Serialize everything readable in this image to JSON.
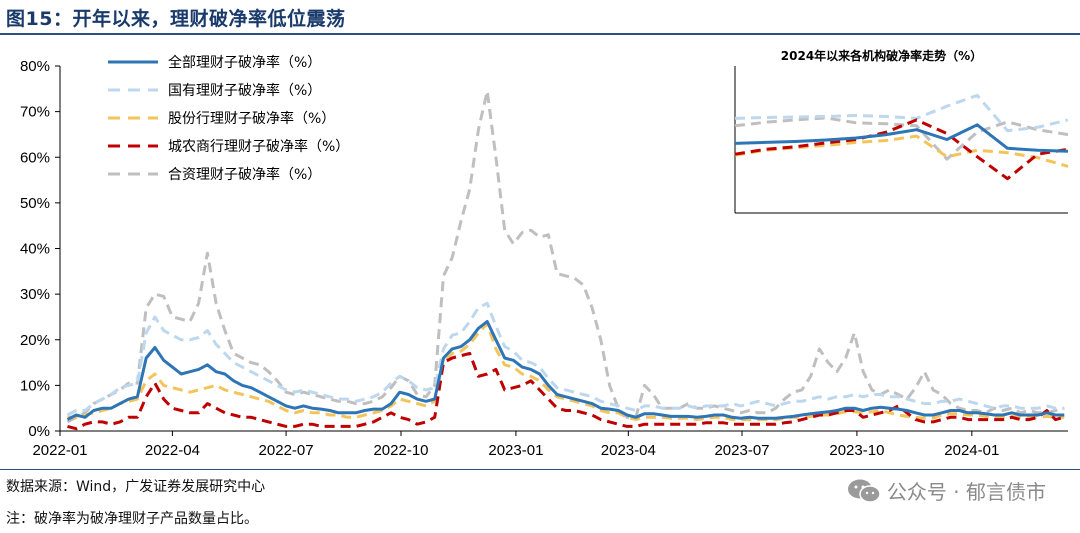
{
  "title": "图15：开年以来，理财破净率低位震荡",
  "source": "数据来源：Wind，广发证券发展研究中心",
  "footnote": "注：破净率为破净理财子产品数量占比。",
  "watermark": "公众号 · 郁言债市",
  "chart_data": [
    {
      "type": "line",
      "x_ticks": [
        "2022-01",
        "2022-04",
        "2022-07",
        "2022-10",
        "2023-01",
        "2023-04",
        "2023-07",
        "2023-10",
        "2024-01"
      ],
      "y_ticks": [
        "0%",
        "10%",
        "20%",
        "30%",
        "40%",
        "50%",
        "60%",
        "70%",
        "80%"
      ],
      "ylim": [
        0,
        80
      ],
      "y_unit": "%",
      "legend_position": "top-left",
      "grid": false,
      "x": [
        "2022-01-07",
        "2022-01-14",
        "2022-01-21",
        "2022-01-28",
        "2022-02-04",
        "2022-02-11",
        "2022-02-18",
        "2022-02-25",
        "2022-03-04",
        "2022-03-11",
        "2022-03-18",
        "2022-03-25",
        "2022-04-01",
        "2022-04-08",
        "2022-04-15",
        "2022-04-22",
        "2022-04-29",
        "2022-05-06",
        "2022-05-13",
        "2022-05-20",
        "2022-05-27",
        "2022-06-03",
        "2022-06-10",
        "2022-06-17",
        "2022-06-24",
        "2022-07-01",
        "2022-07-08",
        "2022-07-15",
        "2022-07-22",
        "2022-07-29",
        "2022-08-05",
        "2022-08-12",
        "2022-08-19",
        "2022-08-26",
        "2022-09-02",
        "2022-09-09",
        "2022-09-16",
        "2022-09-23",
        "2022-09-30",
        "2022-10-07",
        "2022-10-14",
        "2022-10-21",
        "2022-10-28",
        "2022-11-04",
        "2022-11-11",
        "2022-11-18",
        "2022-11-25",
        "2022-12-02",
        "2022-12-09",
        "2022-12-16",
        "2022-12-23",
        "2022-12-30",
        "2023-01-06",
        "2023-01-13",
        "2023-01-20",
        "2023-01-27",
        "2023-02-03",
        "2023-02-10",
        "2023-02-17",
        "2023-02-24",
        "2023-03-03",
        "2023-03-10",
        "2023-03-17",
        "2023-03-24",
        "2023-03-31",
        "2023-04-07",
        "2023-04-14",
        "2023-04-21",
        "2023-04-28",
        "2023-05-05",
        "2023-05-12",
        "2023-05-19",
        "2023-05-26",
        "2023-06-02",
        "2023-06-09",
        "2023-06-16",
        "2023-06-23",
        "2023-06-30",
        "2023-07-07",
        "2023-07-14",
        "2023-07-21",
        "2023-07-28",
        "2023-08-04",
        "2023-08-11",
        "2023-08-18",
        "2023-08-25",
        "2023-09-01",
        "2023-09-08",
        "2023-09-15",
        "2023-09-22",
        "2023-09-29",
        "2023-10-06",
        "2023-10-13",
        "2023-10-20",
        "2023-10-27",
        "2023-11-03",
        "2023-11-10",
        "2023-11-17",
        "2023-11-24",
        "2023-12-01",
        "2023-12-08",
        "2023-12-15",
        "2023-12-22",
        "2023-12-29",
        "2024-01-05",
        "2024-01-12",
        "2024-01-19",
        "2024-01-26",
        "2024-02-02",
        "2024-02-09",
        "2024-02-16",
        "2024-02-23",
        "2024-03-01",
        "2024-03-08",
        "2024-03-15"
      ],
      "series": [
        {
          "name": "全部理财子破净率（%）",
          "color": "#2e75b6",
          "style": "solid",
          "values": [
            2.5,
            3.5,
            3.0,
            4.5,
            5.0,
            5.0,
            6.0,
            7.0,
            7.5,
            16.0,
            18.3,
            15.5,
            14.0,
            12.5,
            13.0,
            13.5,
            14.5,
            13.0,
            12.5,
            11.0,
            10.0,
            9.5,
            8.5,
            7.5,
            6.5,
            5.5,
            5.0,
            5.5,
            5.0,
            4.8,
            4.5,
            4.0,
            4.0,
            4.0,
            4.5,
            4.8,
            4.8,
            6.0,
            8.5,
            8.0,
            7.0,
            6.5,
            7.0,
            16.0,
            18.0,
            18.5,
            20.0,
            22.5,
            24.0,
            20.0,
            16.0,
            15.5,
            14.0,
            13.5,
            12.5,
            10.0,
            8.0,
            7.5,
            7.0,
            6.5,
            6.0,
            5.0,
            4.8,
            4.5,
            3.5,
            3.0,
            3.8,
            3.8,
            3.5,
            3.2,
            3.2,
            3.2,
            3.0,
            3.2,
            3.5,
            3.5,
            3.0,
            2.8,
            3.0,
            2.8,
            2.8,
            2.8,
            3.0,
            3.2,
            3.5,
            3.8,
            4.0,
            4.2,
            4.5,
            5.0,
            5.0,
            4.5,
            5.0,
            5.2,
            5.0,
            4.8,
            4.5,
            4.0,
            3.5,
            3.5,
            4.0,
            4.5,
            4.5,
            4.0,
            4.0,
            3.8,
            3.5,
            3.5,
            4.0,
            3.5,
            3.5,
            3.5,
            4.0,
            3.5,
            3.5
          ]
        },
        {
          "name": "国有理财子破净率（%）",
          "color": "#bdd7ee",
          "style": "dashed",
          "values": [
            3.5,
            4.5,
            4.5,
            6.0,
            7.0,
            8.0,
            9.5,
            10.0,
            10.5,
            21.5,
            25.0,
            22.0,
            21.0,
            20.0,
            20.0,
            20.5,
            22.0,
            19.0,
            17.0,
            15.0,
            14.0,
            13.0,
            12.0,
            11.0,
            10.0,
            9.0,
            8.5,
            9.0,
            8.5,
            8.0,
            7.5,
            7.0,
            7.0,
            6.5,
            7.0,
            7.5,
            8.5,
            10.5,
            12.0,
            11.0,
            9.5,
            9.0,
            9.5,
            18.0,
            21.0,
            21.5,
            24.0,
            27.0,
            28.0,
            23.0,
            18.5,
            17.5,
            15.5,
            15.0,
            14.0,
            11.5,
            9.5,
            9.0,
            8.5,
            8.0,
            7.5,
            6.5,
            6.0,
            5.5,
            5.0,
            4.5,
            5.5,
            5.5,
            5.0,
            5.0,
            5.0,
            5.5,
            5.0,
            5.5,
            5.5,
            5.5,
            6.0,
            5.5,
            6.0,
            6.5,
            6.0,
            5.5,
            6.0,
            6.5,
            6.5,
            7.0,
            7.5,
            7.0,
            7.5,
            7.5,
            8.0,
            7.5,
            8.0,
            8.0,
            7.5,
            7.5,
            7.0,
            6.5,
            6.0,
            6.0,
            6.5,
            6.5,
            7.0,
            6.5,
            6.0,
            5.5,
            5.0,
            5.5,
            5.5,
            5.0,
            5.0,
            5.0,
            5.5,
            5.0,
            5.0
          ]
        },
        {
          "name": "股份行理财子破净率（%）",
          "color": "#f2c45a",
          "style": "dashed",
          "values": [
            3.0,
            3.0,
            3.5,
            4.0,
            4.5,
            5.0,
            6.0,
            6.5,
            7.0,
            11.0,
            12.5,
            10.0,
            9.5,
            9.0,
            8.5,
            9.0,
            9.5,
            10.0,
            9.0,
            8.5,
            8.0,
            7.5,
            7.0,
            6.5,
            5.5,
            4.5,
            4.0,
            4.5,
            4.0,
            4.0,
            3.5,
            3.5,
            3.0,
            3.0,
            3.5,
            4.0,
            4.5,
            5.5,
            7.0,
            6.5,
            6.0,
            5.5,
            6.5,
            15.0,
            17.0,
            17.5,
            19.0,
            21.5,
            23.5,
            18.0,
            14.5,
            14.0,
            12.5,
            12.0,
            11.0,
            9.0,
            7.5,
            7.0,
            6.5,
            6.0,
            5.5,
            4.5,
            4.0,
            4.0,
            3.0,
            2.5,
            3.0,
            3.0,
            3.0,
            2.8,
            2.8,
            2.8,
            2.5,
            2.8,
            3.0,
            3.0,
            2.5,
            2.5,
            2.5,
            2.5,
            2.5,
            2.5,
            2.8,
            3.0,
            3.0,
            3.2,
            3.5,
            3.5,
            3.8,
            4.2,
            4.2,
            4.0,
            4.2,
            4.5,
            4.0,
            3.5,
            3.2,
            3.0,
            2.8,
            2.8,
            3.5,
            3.8,
            3.8,
            3.5,
            3.5,
            3.2,
            3.0,
            3.0,
            3.2,
            3.0,
            3.0,
            3.0,
            3.2,
            3.0,
            3.0
          ]
        },
        {
          "name": "城农商行理财子破净率（%）",
          "color": "#c00000",
          "style": "dashed",
          "values": [
            1.0,
            0.5,
            1.5,
            2.0,
            2.0,
            1.5,
            2.0,
            3.0,
            3.0,
            7.5,
            10.5,
            7.0,
            5.0,
            4.5,
            4.0,
            4.0,
            6.0,
            5.0,
            4.0,
            3.5,
            3.0,
            3.0,
            2.5,
            2.0,
            1.5,
            1.0,
            1.0,
            1.5,
            1.5,
            1.0,
            1.0,
            1.0,
            1.0,
            1.0,
            1.5,
            2.0,
            3.0,
            4.0,
            3.0,
            2.5,
            1.5,
            2.0,
            3.0,
            15.0,
            16.0,
            16.5,
            17.0,
            12.0,
            12.5,
            13.5,
            9.0,
            9.5,
            10.0,
            11.0,
            9.0,
            7.0,
            5.0,
            4.5,
            4.5,
            4.0,
            3.5,
            2.5,
            2.0,
            1.5,
            1.0,
            1.0,
            1.5,
            1.5,
            1.5,
            1.5,
            1.5,
            1.5,
            1.5,
            1.8,
            1.8,
            1.8,
            1.5,
            1.5,
            1.5,
            1.5,
            1.5,
            1.5,
            1.8,
            2.0,
            2.5,
            3.0,
            3.5,
            3.5,
            4.0,
            4.5,
            4.5,
            3.0,
            3.5,
            4.0,
            4.5,
            5.5,
            4.0,
            2.5,
            2.0,
            2.0,
            2.5,
            3.0,
            3.0,
            2.5,
            2.5,
            2.5,
            2.5,
            2.5,
            3.0,
            2.5,
            2.5,
            3.0,
            4.5,
            2.5,
            3.0
          ]
        },
        {
          "name": "合资理财子破净率（%）",
          "color": "#bfbfbf",
          "style": "dashed",
          "values": [
            2.0,
            3.0,
            4.0,
            6.0,
            7.0,
            8.0,
            9.0,
            10.5,
            10.5,
            27.0,
            30.0,
            29.5,
            25.0,
            24.5,
            24.0,
            28.0,
            39.0,
            28.0,
            22.0,
            17.0,
            16.0,
            15.0,
            14.5,
            13.0,
            11.0,
            8.5,
            8.0,
            8.5,
            8.0,
            7.5,
            7.0,
            6.5,
            6.5,
            6.0,
            6.0,
            6.5,
            7.5,
            9.5,
            12.0,
            11.0,
            8.0,
            7.5,
            10.0,
            34.0,
            38.0,
            46.0,
            53.0,
            66.0,
            74.5,
            60.0,
            44.0,
            41.0,
            43.5,
            44.0,
            42.5,
            43.0,
            34.5,
            34.0,
            33.5,
            32.0,
            27.0,
            20.0,
            10.0,
            5.0,
            3.0,
            3.0,
            10.0,
            8.0,
            5.0,
            5.0,
            5.0,
            6.0,
            5.0,
            5.0,
            5.5,
            5.0,
            4.5,
            4.0,
            4.5,
            4.0,
            4.0,
            5.0,
            7.0,
            8.5,
            9.0,
            12.0,
            18.0,
            15.0,
            13.0,
            16.0,
            21.5,
            13.0,
            9.0,
            8.0,
            9.0,
            8.0,
            7.0,
            9.5,
            13.0,
            9.0,
            8.0,
            6.0,
            5.0,
            4.5,
            4.5,
            4.0,
            5.0,
            4.5,
            5.0,
            4.0,
            4.5,
            4.0,
            4.0,
            4.5,
            5.0
          ]
        }
      ]
    },
    {
      "type": "line",
      "title": "2024年以来各机构破净率走势（%）",
      "grid": false,
      "series": [
        {
          "name": "全部理财子破净率（%）",
          "color": "#2e75b6",
          "style": "solid",
          "values": [
            59.2,
            59.4,
            59.6,
            59.9,
            60.3,
            61.0,
            62.0,
            60.0,
            63.0,
            58.2,
            57.8,
            57.6
          ]
        },
        {
          "name": "国有理财子破净率（%）",
          "color": "#bdd7ee",
          "style": "dashed",
          "values": [
            64.3,
            64.5,
            64.6,
            64.7,
            64.9,
            64.7,
            64.3,
            66.8,
            69.0,
            61.8,
            62.5,
            64.0
          ]
        },
        {
          "name": "股份行理财子破净率（%）",
          "color": "#f2c45a",
          "style": "dashed",
          "values": [
            56.8,
            57.8,
            58.3,
            58.8,
            59.4,
            59.8,
            60.7,
            56.5,
            57.8,
            57.3,
            56.3,
            54.5
          ]
        },
        {
          "name": "城农商行理财子破净率（%）",
          "color": "#c00000",
          "style": "dashed",
          "values": [
            57.0,
            58.0,
            58.5,
            59.3,
            60.0,
            61.5,
            64.0,
            61.2,
            56.5,
            52.0,
            57.0,
            58.0
          ]
        },
        {
          "name": "合资理财子破净率（%）",
          "color": "#bfbfbf",
          "style": "dashed",
          "values": [
            62.8,
            63.5,
            64.0,
            64.4,
            63.4,
            63.2,
            62.8,
            56.0,
            61.5,
            63.6,
            62.0,
            61.0
          ]
        }
      ]
    }
  ]
}
